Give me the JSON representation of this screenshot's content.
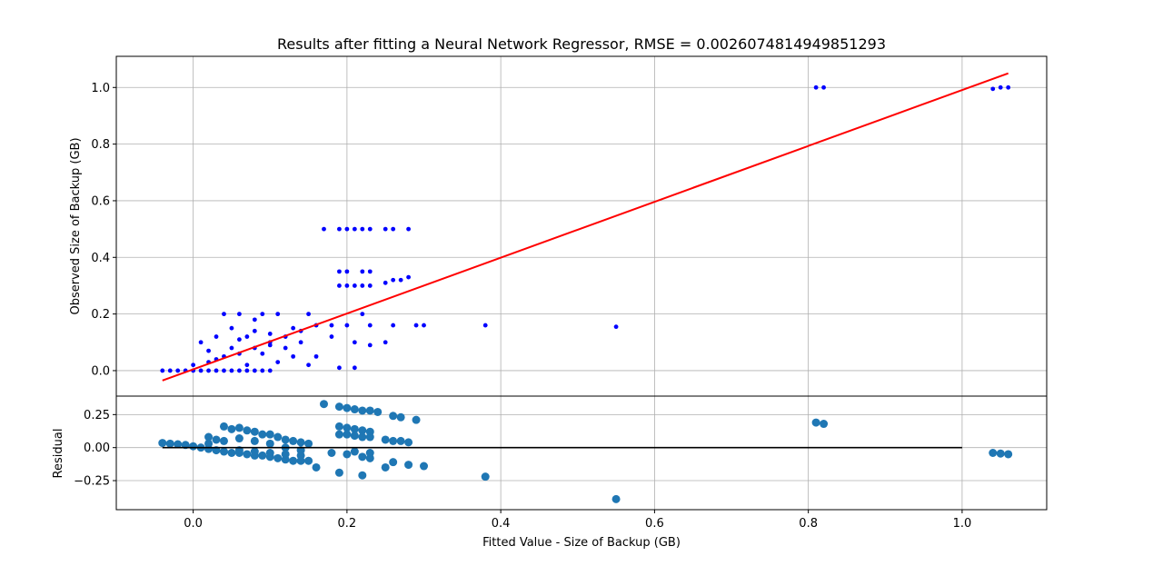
{
  "chart_data": [
    {
      "type": "scatter",
      "title": "Results after fitting a Neural Network Regressor, RMSE = 0.0026074814949851293",
      "xlabel": "",
      "ylabel": "Observed Size of Backup (GB)",
      "xlim": [
        -0.1,
        1.11
      ],
      "ylim": [
        -0.09,
        1.11
      ],
      "grid": true,
      "x_ticks": [
        0.0,
        0.2,
        0.4,
        0.6,
        0.8,
        1.0
      ],
      "x_tick_labels": [
        "",
        "",
        "",
        "",
        "",
        ""
      ],
      "y_ticks": [
        0.0,
        0.2,
        0.4,
        0.6,
        0.8,
        1.0
      ],
      "y_tick_labels": [
        "0.0",
        "0.2",
        "0.4",
        "0.6",
        "0.8",
        "1.0"
      ],
      "series": [
        {
          "kind": "points",
          "color": "#0000ff",
          "points": [
            [
              -0.04,
              0.0
            ],
            [
              -0.03,
              0.0
            ],
            [
              -0.02,
              0.0
            ],
            [
              -0.01,
              0.0
            ],
            [
              0.0,
              0.0
            ],
            [
              0.01,
              0.0
            ],
            [
              0.02,
              0.0
            ],
            [
              0.03,
              0.0
            ],
            [
              0.04,
              0.0
            ],
            [
              0.05,
              0.0
            ],
            [
              0.06,
              0.0
            ],
            [
              0.07,
              0.0
            ],
            [
              0.08,
              0.0
            ],
            [
              0.09,
              0.0
            ],
            [
              0.1,
              0.0
            ],
            [
              0.0,
              0.02
            ],
            [
              0.02,
              0.03
            ],
            [
              0.04,
              0.05
            ],
            [
              0.06,
              0.06
            ],
            [
              0.08,
              0.08
            ],
            [
              0.1,
              0.1
            ],
            [
              0.12,
              0.12
            ],
            [
              0.14,
              0.14
            ],
            [
              0.16,
              0.16
            ],
            [
              0.01,
              0.1
            ],
            [
              0.02,
              0.07
            ],
            [
              0.03,
              0.12
            ],
            [
              0.04,
              0.2
            ],
            [
              0.05,
              0.15
            ],
            [
              0.06,
              0.2
            ],
            [
              0.07,
              0.12
            ],
            [
              0.08,
              0.18
            ],
            [
              0.09,
              0.2
            ],
            [
              0.1,
              0.13
            ],
            [
              0.11,
              0.2
            ],
            [
              0.12,
              0.08
            ],
            [
              0.13,
              0.15
            ],
            [
              0.14,
              0.1
            ],
            [
              0.15,
              0.2
            ],
            [
              0.16,
              0.05
            ],
            [
              0.03,
              0.04
            ],
            [
              0.05,
              0.08
            ],
            [
              0.07,
              0.02
            ],
            [
              0.09,
              0.06
            ],
            [
              0.11,
              0.03
            ],
            [
              0.13,
              0.05
            ],
            [
              0.15,
              0.02
            ],
            [
              0.06,
              0.11
            ],
            [
              0.08,
              0.14
            ],
            [
              0.1,
              0.09
            ],
            [
              0.17,
              0.5
            ],
            [
              0.19,
              0.5
            ],
            [
              0.2,
              0.5
            ],
            [
              0.21,
              0.5
            ],
            [
              0.22,
              0.5
            ],
            [
              0.23,
              0.5
            ],
            [
              0.25,
              0.5
            ],
            [
              0.26,
              0.5
            ],
            [
              0.28,
              0.5
            ],
            [
              0.19,
              0.35
            ],
            [
              0.2,
              0.35
            ],
            [
              0.22,
              0.35
            ],
            [
              0.23,
              0.35
            ],
            [
              0.19,
              0.3
            ],
            [
              0.2,
              0.3
            ],
            [
              0.21,
              0.3
            ],
            [
              0.22,
              0.3
            ],
            [
              0.23,
              0.3
            ],
            [
              0.25,
              0.31
            ],
            [
              0.26,
              0.32
            ],
            [
              0.27,
              0.32
            ],
            [
              0.28,
              0.33
            ],
            [
              0.18,
              0.16
            ],
            [
              0.2,
              0.16
            ],
            [
              0.22,
              0.2
            ],
            [
              0.23,
              0.16
            ],
            [
              0.26,
              0.16
            ],
            [
              0.29,
              0.16
            ],
            [
              0.3,
              0.16
            ],
            [
              0.21,
              0.1
            ],
            [
              0.23,
              0.09
            ],
            [
              0.25,
              0.1
            ],
            [
              0.18,
              0.12
            ],
            [
              0.19,
              0.01
            ],
            [
              0.21,
              0.01
            ],
            [
              0.38,
              0.16
            ],
            [
              0.55,
              0.155
            ],
            [
              0.81,
              1.0
            ],
            [
              0.82,
              1.0
            ],
            [
              1.04,
              0.995
            ],
            [
              1.05,
              1.0
            ],
            [
              1.06,
              1.0
            ]
          ]
        },
        {
          "kind": "line",
          "color": "#ff0000",
          "points": [
            [
              -0.04,
              -0.035
            ],
            [
              1.06,
              1.05
            ]
          ]
        }
      ]
    },
    {
      "type": "scatter",
      "title": "",
      "xlabel": "Fitted Value - Size of Backup (GB)",
      "ylabel": "Residual",
      "xlim": [
        -0.1,
        1.11
      ],
      "ylim": [
        -0.47,
        0.39
      ],
      "grid": true,
      "x_ticks": [
        0.0,
        0.2,
        0.4,
        0.6,
        0.8,
        1.0
      ],
      "x_tick_labels": [
        "0.0",
        "0.2",
        "0.4",
        "0.6",
        "0.8",
        "1.0"
      ],
      "y_ticks": [
        0.25,
        0.0,
        -0.25
      ],
      "y_tick_labels": [
        "0.25",
        "0.00",
        "−0.25"
      ],
      "series": [
        {
          "kind": "points",
          "color": "#1f77b4",
          "points": [
            [
              -0.04,
              0.035
            ],
            [
              -0.03,
              0.03
            ],
            [
              -0.02,
              0.025
            ],
            [
              -0.01,
              0.02
            ],
            [
              0.0,
              0.01
            ],
            [
              0.01,
              0.0
            ],
            [
              0.02,
              -0.01
            ],
            [
              0.03,
              -0.02
            ],
            [
              0.04,
              -0.03
            ],
            [
              0.05,
              -0.04
            ],
            [
              0.06,
              -0.04
            ],
            [
              0.07,
              -0.05
            ],
            [
              0.08,
              -0.06
            ],
            [
              0.09,
              -0.06
            ],
            [
              0.1,
              -0.07
            ],
            [
              0.11,
              -0.08
            ],
            [
              0.12,
              -0.09
            ],
            [
              0.13,
              -0.1
            ],
            [
              0.14,
              -0.1
            ],
            [
              0.15,
              -0.1
            ],
            [
              0.16,
              -0.15
            ],
            [
              0.02,
              0.08
            ],
            [
              0.03,
              0.06
            ],
            [
              0.04,
              0.16
            ],
            [
              0.05,
              0.14
            ],
            [
              0.06,
              0.15
            ],
            [
              0.07,
              0.13
            ],
            [
              0.08,
              0.12
            ],
            [
              0.09,
              0.1
            ],
            [
              0.1,
              0.1
            ],
            [
              0.11,
              0.08
            ],
            [
              0.12,
              0.06
            ],
            [
              0.13,
              0.05
            ],
            [
              0.14,
              0.04
            ],
            [
              0.15,
              0.03
            ],
            [
              0.02,
              0.03
            ],
            [
              0.04,
              0.05
            ],
            [
              0.06,
              0.07
            ],
            [
              0.08,
              0.05
            ],
            [
              0.1,
              0.03
            ],
            [
              0.12,
              0.0
            ],
            [
              0.14,
              -0.02
            ],
            [
              0.06,
              -0.02
            ],
            [
              0.08,
              -0.03
            ],
            [
              0.1,
              -0.04
            ],
            [
              0.12,
              -0.05
            ],
            [
              0.14,
              -0.06
            ],
            [
              0.17,
              0.33
            ],
            [
              0.19,
              0.31
            ],
            [
              0.2,
              0.3
            ],
            [
              0.21,
              0.29
            ],
            [
              0.22,
              0.28
            ],
            [
              0.23,
              0.28
            ],
            [
              0.24,
              0.27
            ],
            [
              0.26,
              0.24
            ],
            [
              0.27,
              0.23
            ],
            [
              0.29,
              0.21
            ],
            [
              0.19,
              0.16
            ],
            [
              0.2,
              0.15
            ],
            [
              0.21,
              0.14
            ],
            [
              0.22,
              0.13
            ],
            [
              0.23,
              0.12
            ],
            [
              0.19,
              0.1
            ],
            [
              0.2,
              0.1
            ],
            [
              0.21,
              0.09
            ],
            [
              0.22,
              0.08
            ],
            [
              0.23,
              0.08
            ],
            [
              0.25,
              0.06
            ],
            [
              0.26,
              0.05
            ],
            [
              0.27,
              0.05
            ],
            [
              0.28,
              0.04
            ],
            [
              0.18,
              -0.04
            ],
            [
              0.2,
              -0.05
            ],
            [
              0.22,
              -0.07
            ],
            [
              0.23,
              -0.08
            ],
            [
              0.26,
              -0.11
            ],
            [
              0.28,
              -0.13
            ],
            [
              0.3,
              -0.14
            ],
            [
              0.21,
              -0.03
            ],
            [
              0.23,
              -0.04
            ],
            [
              0.25,
              -0.15
            ],
            [
              0.19,
              -0.19
            ],
            [
              0.22,
              -0.21
            ],
            [
              0.38,
              -0.22
            ],
            [
              0.55,
              -0.39
            ],
            [
              0.81,
              0.19
            ],
            [
              0.82,
              0.18
            ],
            [
              1.04,
              -0.04
            ],
            [
              1.05,
              -0.045
            ],
            [
              1.06,
              -0.05
            ]
          ]
        },
        {
          "kind": "line",
          "color": "#000000",
          "points": [
            [
              -0.04,
              0.0
            ],
            [
              1.0,
              0.0
            ]
          ]
        }
      ]
    }
  ]
}
